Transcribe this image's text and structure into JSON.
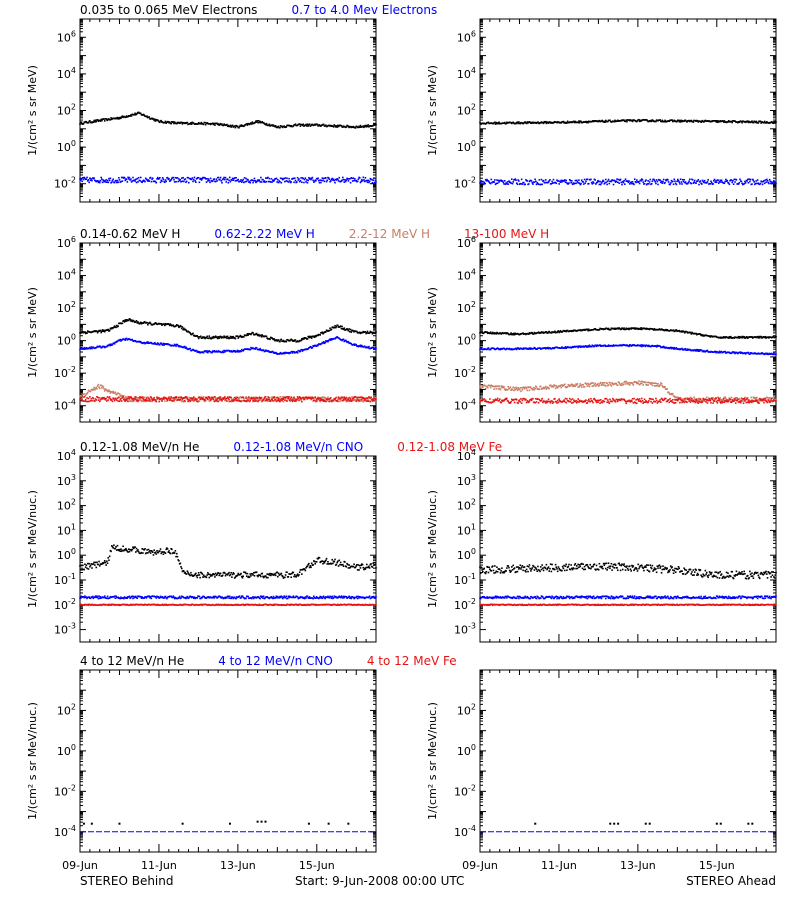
{
  "colors": {
    "black": "#000000",
    "blue": "#0000ff",
    "tan": "#c87e64",
    "red": "#e61414",
    "gray": "#999999"
  },
  "footer": {
    "behind": "STEREO Behind",
    "start": "Start:  9-Jun-2008 00:00 UTC",
    "ahead": "STEREO Ahead"
  },
  "x_ticks": [
    "09-Jun",
    "11-Jun",
    "13-Jun",
    "15-Jun"
  ],
  "rows": [
    {
      "id": "electrons",
      "labels": [
        {
          "text": "0.035 to 0.065 MeV Electrons",
          "color": "#000000"
        },
        {
          "text": "0.7 to 4.0 Mev Electrons",
          "color": "#0000ff"
        }
      ],
      "ylabel": "1/(cm² s sr MeV)",
      "ylog_range": [
        -3,
        7
      ],
      "yticks": [
        -2,
        0,
        2,
        4,
        6
      ]
    },
    {
      "id": "protons",
      "labels": [
        {
          "text": "0.14-0.62 MeV H",
          "color": "#000000"
        },
        {
          "text": "0.62-2.22 MeV H",
          "color": "#0000ff"
        },
        {
          "text": "2.2-12 MeV H",
          "color": "#c87e64"
        },
        {
          "text": "13-100 MeV H",
          "color": "#e61414"
        }
      ],
      "ylabel": "1/(cm² s sr MeV)",
      "ylog_range": [
        -5,
        6
      ],
      "yticks": [
        -4,
        -2,
        0,
        2,
        4,
        6
      ]
    },
    {
      "id": "ions-low",
      "labels": [
        {
          "text": "0.12-1.08 MeV/n He",
          "color": "#000000"
        },
        {
          "text": "0.12-1.08 MeV/n CNO",
          "color": "#0000ff"
        },
        {
          "text": "0.12-1.08 MeV Fe",
          "color": "#e61414"
        }
      ],
      "ylabel": "1/(cm² s sr MeV/nuc.)",
      "ylog_range": [
        -3.5,
        4
      ],
      "yticks": [
        -3,
        -2,
        -1,
        0,
        1,
        2,
        3,
        4
      ]
    },
    {
      "id": "ions-high",
      "labels": [
        {
          "text": "4 to 12 MeV/n He",
          "color": "#000000"
        },
        {
          "text": "4 to 12 MeV/n CNO",
          "color": "#0000ff"
        },
        {
          "text": "4 to 12 MeV Fe",
          "color": "#e61414"
        }
      ],
      "ylabel": "1/(cm² s sr MeV/nuc.)",
      "ylog_range": [
        -5,
        4
      ],
      "yticks": [
        -4,
        -2,
        0,
        2
      ]
    }
  ],
  "chart_data": [
    {
      "type": "scatter",
      "panel": "behind-electrons",
      "x_unit": "days",
      "xlim": [
        0,
        7.5
      ],
      "yscale": "log",
      "series": [
        {
          "name": "0.035 to 0.065 MeV Electrons",
          "color": "#000000",
          "spread": 0.06,
          "x": [
            0,
            1,
            1.5,
            2,
            2.5,
            3,
            3.5,
            4,
            4.5,
            5,
            5.5,
            6,
            6.5,
            7,
            7.5
          ],
          "log10y": [
            1.3,
            1.6,
            1.85,
            1.4,
            1.3,
            1.3,
            1.25,
            1.1,
            1.4,
            1.1,
            1.2,
            1.2,
            1.15,
            1.1,
            1.2
          ]
        },
        {
          "name": "0.7 to 4.0 Mev Electrons",
          "color": "#0000ff",
          "spread": 0.15,
          "x": [
            0,
            7.5
          ],
          "log10y": [
            -1.8,
            -1.8
          ]
        }
      ]
    },
    {
      "type": "scatter",
      "panel": "ahead-electrons",
      "x_unit": "days",
      "xlim": [
        0,
        7.5
      ],
      "yscale": "log",
      "series": [
        {
          "name": "0.035 to 0.065 MeV Electrons",
          "color": "#000000",
          "spread": 0.05,
          "x": [
            0,
            2,
            4,
            6,
            7.5
          ],
          "log10y": [
            1.3,
            1.35,
            1.45,
            1.4,
            1.35
          ]
        },
        {
          "name": "0.7 to 4.0 Mev Electrons",
          "color": "#0000ff",
          "spread": 0.15,
          "x": [
            0,
            7.5
          ],
          "log10y": [
            -1.9,
            -1.9
          ]
        }
      ]
    },
    {
      "type": "scatter",
      "panel": "behind-protons",
      "x_unit": "days",
      "xlim": [
        0,
        7.5
      ],
      "yscale": "log",
      "series": [
        {
          "name": "0.14-0.62 MeV H",
          "color": "#000000",
          "spread": 0.08,
          "x": [
            0,
            0.7,
            1.0,
            1.2,
            1.5,
            2.0,
            2.5,
            3.0,
            4.0,
            4.4,
            5.0,
            5.5,
            6.0,
            6.5,
            7.0,
            7.5
          ],
          "log10y": [
            0.5,
            0.6,
            1.0,
            1.3,
            1.1,
            1.0,
            0.9,
            0.2,
            0.2,
            0.45,
            0.0,
            0.0,
            0.3,
            0.9,
            0.5,
            0.5
          ]
        },
        {
          "name": "0.62-2.22 MeV H",
          "color": "#0000ff",
          "spread": 0.06,
          "x": [
            0,
            0.7,
            1.0,
            1.2,
            1.5,
            2.0,
            2.5,
            3.0,
            4.0,
            4.4,
            5.0,
            5.5,
            6.0,
            6.5,
            7.0,
            7.5
          ],
          "log10y": [
            -0.5,
            -0.35,
            0.0,
            0.1,
            -0.1,
            -0.2,
            -0.3,
            -0.7,
            -0.65,
            -0.45,
            -0.8,
            -0.7,
            -0.3,
            0.2,
            -0.3,
            -0.5
          ]
        },
        {
          "name": "2.2-12 MeV H",
          "color": "#c87e64",
          "spread": 0.15,
          "x": [
            0,
            0.3,
            0.5,
            0.8,
            1.2,
            7.5
          ],
          "log10y": [
            -3.5,
            -3.0,
            -2.8,
            -3.2,
            -3.6,
            -3.6
          ]
        },
        {
          "name": "13-100 MeV H",
          "color": "#e61414",
          "spread": 0.15,
          "x": [
            0,
            7.5
          ],
          "log10y": [
            -3.6,
            -3.6
          ]
        }
      ]
    },
    {
      "type": "scatter",
      "panel": "ahead-protons",
      "x_unit": "days",
      "xlim": [
        0,
        7.5
      ],
      "yscale": "log",
      "series": [
        {
          "name": "0.14-0.62 MeV H",
          "color": "#000000",
          "spread": 0.05,
          "x": [
            0,
            1,
            2,
            3,
            4,
            5,
            6,
            7,
            7.5
          ],
          "log10y": [
            0.5,
            0.4,
            0.55,
            0.7,
            0.75,
            0.6,
            0.2,
            0.2,
            0.2
          ]
        },
        {
          "name": "0.62-2.22 MeV H",
          "color": "#0000ff",
          "spread": 0.05,
          "x": [
            0,
            1,
            2,
            3,
            4,
            4.5,
            5,
            6,
            7,
            7.5
          ],
          "log10y": [
            -0.5,
            -0.5,
            -0.45,
            -0.3,
            -0.3,
            -0.35,
            -0.5,
            -0.7,
            -0.8,
            -0.8
          ]
        },
        {
          "name": "2.2-12 MeV H",
          "color": "#c87e64",
          "spread": 0.12,
          "x": [
            0,
            1,
            2,
            3,
            4,
            4.6,
            5,
            7.5
          ],
          "log10y": [
            -2.8,
            -3.0,
            -2.8,
            -2.7,
            -2.6,
            -2.7,
            -3.6,
            -3.6
          ]
        },
        {
          "name": "13-100 MeV H",
          "color": "#e61414",
          "spread": 0.15,
          "x": [
            0,
            7.5
          ],
          "log10y": [
            -3.7,
            -3.7
          ]
        }
      ]
    },
    {
      "type": "scatter",
      "panel": "behind-ions-low",
      "x_unit": "days",
      "xlim": [
        0,
        7.5
      ],
      "yscale": "log",
      "series": [
        {
          "name": "0.12-1.08 MeV/n He",
          "color": "#000000",
          "spread": 0.12,
          "x": [
            0,
            0.7,
            0.8,
            1.5,
            1.8,
            2.4,
            2.6,
            3.0,
            4.0,
            5.0,
            5.5,
            6.0,
            6.5,
            7.0,
            7.5
          ],
          "log10y": [
            -0.5,
            -0.3,
            0.3,
            0.2,
            0.1,
            0.2,
            -0.7,
            -0.8,
            -0.8,
            -0.8,
            -0.8,
            -0.2,
            -0.3,
            -0.5,
            -0.4
          ]
        },
        {
          "name": "0.12-1.08 MeV/n CNO",
          "color": "#0000ff",
          "spread": 0.05,
          "x": [
            0,
            7.5
          ],
          "log10y": [
            -1.7,
            -1.7
          ]
        },
        {
          "name": "0.12-1.08 MeV Fe",
          "color": "#e61414",
          "spread": 0.02,
          "x": [
            0,
            7.5
          ],
          "log10y": [
            -2.0,
            -2.0
          ]
        }
      ]
    },
    {
      "type": "scatter",
      "panel": "ahead-ions-low",
      "x_unit": "days",
      "xlim": [
        0,
        7.5
      ],
      "yscale": "log",
      "series": [
        {
          "name": "0.12-1.08 MeV/n He",
          "color": "#000000",
          "spread": 0.15,
          "x": [
            0,
            1,
            2,
            3,
            4,
            5,
            6,
            7,
            7.5
          ],
          "log10y": [
            -0.6,
            -0.55,
            -0.5,
            -0.45,
            -0.5,
            -0.6,
            -0.8,
            -0.8,
            -0.8
          ]
        },
        {
          "name": "0.12-1.08 MeV/n CNO",
          "color": "#0000ff",
          "spread": 0.05,
          "x": [
            0,
            7.5
          ],
          "log10y": [
            -1.7,
            -1.7
          ]
        },
        {
          "name": "0.12-1.08 MeV Fe",
          "color": "#e61414",
          "spread": 0.02,
          "x": [
            0,
            7.5
          ],
          "log10y": [
            -2.0,
            -2.0
          ]
        }
      ]
    },
    {
      "type": "scatter",
      "panel": "behind-ions-high",
      "x_unit": "days",
      "xlim": [
        0,
        7.5
      ],
      "yscale": "log",
      "series": [
        {
          "name": "4 to 12 MeV/n He",
          "color": "#000000",
          "spread": 0.0,
          "x": [
            0.1,
            0.3,
            1.0,
            2.6,
            3.8,
            4.5,
            4.6,
            4.7,
            5.8,
            6.3,
            6.8
          ],
          "log10y": [
            -3.6,
            -3.6,
            -3.6,
            -3.6,
            -3.6,
            -3.5,
            -3.5,
            -3.5,
            -3.6,
            -3.6,
            -3.6
          ]
        },
        {
          "name": "4 to 12 MeV/n CNO",
          "color": "#0000ff",
          "spread": 0.0,
          "x": [
            0,
            7.5
          ],
          "log10y": [
            -4.0,
            -4.0
          ]
        }
      ]
    },
    {
      "type": "scatter",
      "panel": "ahead-ions-high",
      "x_unit": "days",
      "xlim": [
        0,
        7.5
      ],
      "yscale": "log",
      "series": [
        {
          "name": "4 to 12 MeV/n He",
          "color": "#000000",
          "spread": 0.0,
          "x": [
            1.4,
            3.3,
            3.4,
            3.5,
            4.2,
            4.3,
            6.0,
            6.1,
            6.8,
            6.9
          ],
          "log10y": [
            -3.6,
            -3.6,
            -3.6,
            -3.6,
            -3.6,
            -3.6,
            -3.6,
            -3.6,
            -3.6,
            -3.6
          ]
        },
        {
          "name": "4 to 12 MeV/n CNO",
          "color": "#0000ff",
          "spread": 0.0,
          "x": [
            0,
            7.5
          ],
          "log10y": [
            -4.0,
            -4.0
          ]
        }
      ]
    }
  ]
}
